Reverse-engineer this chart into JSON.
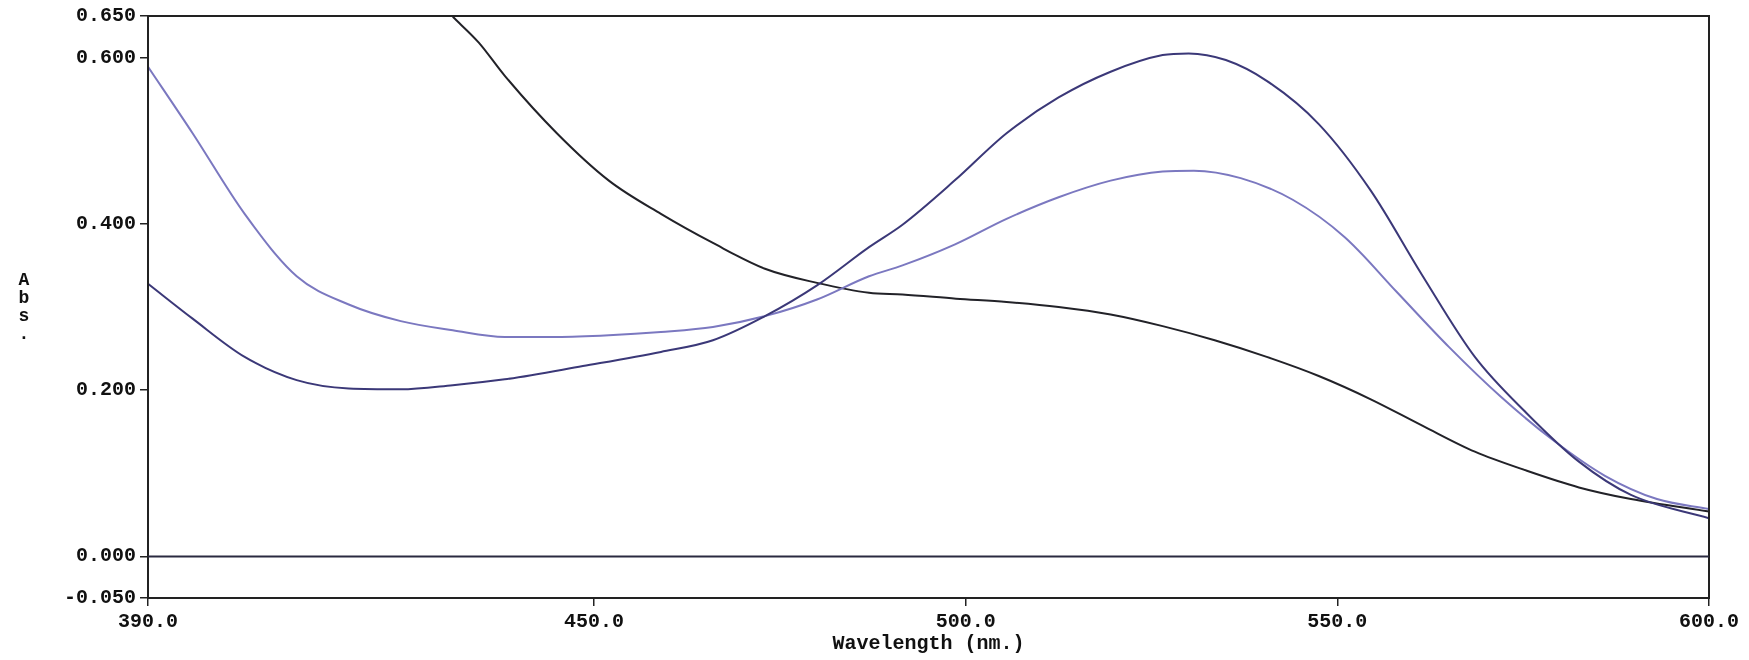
{
  "chart_data": {
    "type": "line",
    "xlabel": "Wavelength (nm.)",
    "ylabel": "Abs.",
    "xlim": [
      390,
      600
    ],
    "ylim": [
      -0.05,
      0.65
    ],
    "xticks": [
      {
        "value": 390,
        "label": "390.0"
      },
      {
        "value": 450,
        "label": "450.0"
      },
      {
        "value": 500,
        "label": "500.0"
      },
      {
        "value": 550,
        "label": "550.0"
      },
      {
        "value": 600,
        "label": "600.0"
      }
    ],
    "yticks": [
      {
        "value": -0.05,
        "label": "-0.050"
      },
      {
        "value": 0,
        "label": "0.000"
      },
      {
        "value": 0.2,
        "label": "0.200"
      },
      {
        "value": 0.4,
        "label": "0.400"
      },
      {
        "value": 0.6,
        "label": "0.600"
      },
      {
        "value": 0.65,
        "label": "0.650"
      }
    ],
    "grid": false,
    "legend": false,
    "marker": "none",
    "line_style": "solid",
    "ref_lines": [
      {
        "axis": "y",
        "value": 0,
        "color": "#2a2a40"
      }
    ],
    "series": [
      {
        "color": "#3b3878",
        "x": [
          390,
          396,
          403,
          410,
          417,
          424,
          431,
          438,
          448.5,
          459,
          466,
          473,
          480,
          487,
          491.5,
          498.5,
          505.5,
          512.5,
          519.5,
          526.5,
          530,
          535,
          540.5,
          547.5,
          554.5,
          561.5,
          568.5,
          575.5,
          582.5,
          589.5,
          600
        ],
        "values": [
          0.328,
          0.286,
          0.24,
          0.212,
          0.202,
          0.201,
          0.206,
          0.213,
          0.229,
          0.246,
          0.26,
          0.289,
          0.326,
          0.372,
          0.399,
          0.452,
          0.509,
          0.552,
          0.583,
          0.603,
          0.605,
          0.597,
          0.572,
          0.52,
          0.44,
          0.337,
          0.24,
          0.172,
          0.114,
          0.074,
          0.046
        ]
      },
      {
        "color": "#7b78c0",
        "x": [
          390,
          396,
          403,
          410,
          417,
          424,
          431,
          438,
          445,
          452,
          459,
          466,
          473,
          480,
          487,
          491.5,
          498.5,
          505.5,
          512.5,
          519.5,
          526.5,
          530.7,
          537,
          544,
          551,
          558,
          565,
          572,
          579,
          586,
          593,
          600
        ],
        "values": [
          0.589,
          0.509,
          0.412,
          0.337,
          0.303,
          0.283,
          0.272,
          0.264,
          0.264,
          0.266,
          0.27,
          0.276,
          0.289,
          0.309,
          0.337,
          0.35,
          0.375,
          0.406,
          0.432,
          0.452,
          0.463,
          0.464,
          0.455,
          0.429,
          0.384,
          0.318,
          0.252,
          0.192,
          0.14,
          0.097,
          0.069,
          0.057
        ]
      },
      {
        "color": "#222228",
        "x": [
          431,
          434.5,
          438,
          445,
          452,
          459,
          466,
          473,
          480,
          487,
          491.5,
          498.7,
          505.5,
          512.5,
          519.5,
          526.5,
          533.5,
          540.5,
          547.5,
          554.5,
          561.5,
          568.5,
          575.5,
          582.5,
          589.5,
          600
        ],
        "values": [
          0.649,
          0.618,
          0.578,
          0.509,
          0.452,
          0.412,
          0.377,
          0.346,
          0.329,
          0.317,
          0.315,
          0.31,
          0.306,
          0.3,
          0.291,
          0.277,
          0.26,
          0.24,
          0.217,
          0.189,
          0.157,
          0.126,
          0.103,
          0.083,
          0.069,
          0.054
        ]
      }
    ]
  }
}
